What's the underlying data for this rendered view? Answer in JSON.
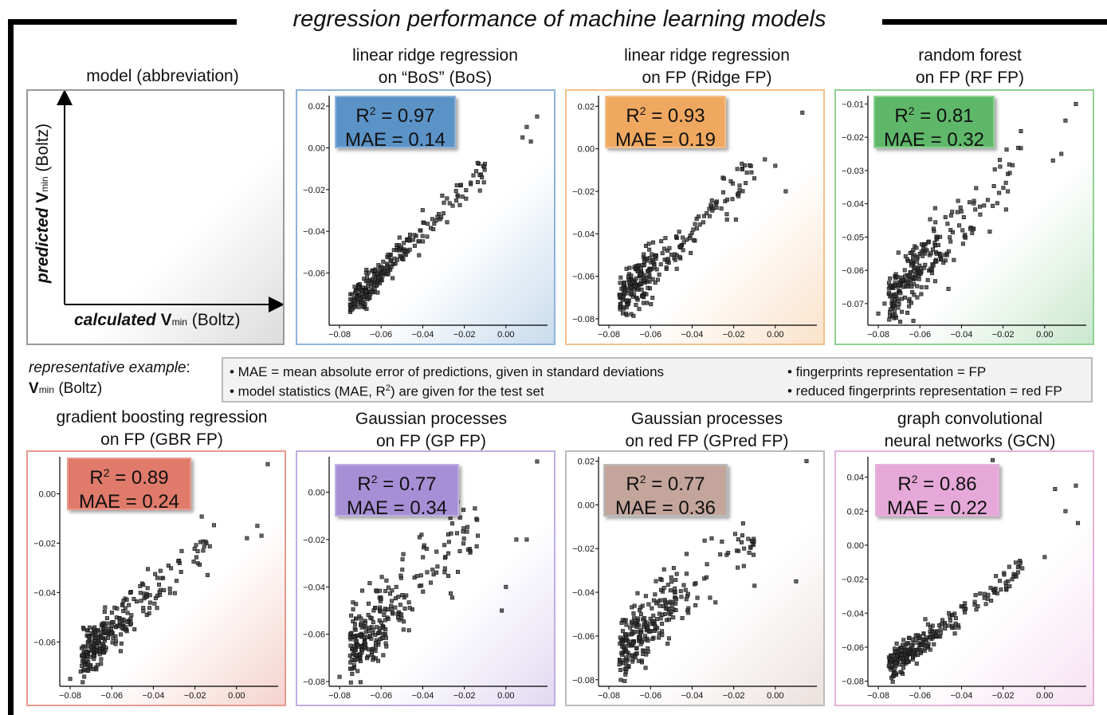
{
  "title": "regression performance of machine learning models",
  "schema": {
    "title": "model (abbreviation)",
    "y_label_em": "predicted",
    "y_label_var": "V",
    "y_label_sub": "min",
    "y_label_rest": "(Boltz)",
    "x_label_em": "calculated",
    "x_label_var": "V",
    "x_label_sub": "min",
    "x_label_rest": "(Boltz)"
  },
  "representative": {
    "line1": "representative example",
    "colon": ":",
    "var": "V",
    "sub": "min",
    "rest": "(Boltz)"
  },
  "notes": {
    "mae": "• MAE = mean absolute error of predictions, given in standard deviations",
    "stats_a": "• model statistics (MAE, R",
    "stats_sup": "2",
    "stats_b": ") are given for the test set",
    "fp": "• fingerprints representation = FP",
    "redfp": "• reduced fingerprints representation = red FP"
  },
  "chart_data": [
    {
      "type": "scatter",
      "title_line1": "linear ridge regression",
      "title_line2": "on “BoS” (BoS)",
      "r2_label": "R",
      "r2_sup": "2",
      "r2_value": " = 0.97",
      "mae_label": "MAE = 0.14",
      "accent": "#5b93c7",
      "border": "#8fb3d9",
      "xlim": [
        -0.085,
        0.02
      ],
      "ylim": [
        -0.085,
        0.025
      ],
      "xticks": [
        -0.08,
        -0.06,
        -0.04,
        -0.02,
        0.0
      ],
      "yticks": [
        -0.06,
        -0.04,
        -0.02,
        0.0,
        0.02
      ],
      "xtick_labels": [
        "−0.08",
        "−0.06",
        "−0.04",
        "−0.02",
        "0.00"
      ],
      "ytick_labels": [
        "−0.06",
        "−0.04",
        "−0.02",
        "0.00",
        "0.02"
      ],
      "slope": 1.0,
      "intercept": 0.0,
      "noise": 0.0035,
      "seed": 11,
      "outliers": [
        [
          0.01,
          0.01
        ],
        [
          0.015,
          0.015
        ],
        [
          0.008,
          0.005
        ],
        [
          0.012,
          0.003
        ]
      ]
    },
    {
      "type": "scatter",
      "title_line1": "linear ridge regression",
      "title_line2": "on FP (Ridge FP)",
      "r2_label": "R",
      "r2_sup": "2",
      "r2_value": " = 0.93",
      "mae_label": "MAE = 0.19",
      "accent": "#f0a860",
      "border": "#f3c08a",
      "xlim": [
        -0.085,
        0.02
      ],
      "ylim": [
        -0.083,
        0.025
      ],
      "xticks": [
        -0.08,
        -0.06,
        -0.04,
        -0.02,
        0.0
      ],
      "yticks": [
        -0.08,
        -0.06,
        -0.04,
        -0.02,
        0.0,
        0.02
      ],
      "xtick_labels": [
        "−0.08",
        "−0.06",
        "−0.04",
        "−0.02",
        "0.00"
      ],
      "ytick_labels": [
        "−0.08",
        "−0.06",
        "−0.04",
        "−0.02",
        "0.00",
        "0.02"
      ],
      "slope": 0.95,
      "intercept": 0.0,
      "noise": 0.0055,
      "seed": 23,
      "outliers": [
        [
          0.013,
          0.017
        ],
        [
          0.0,
          -0.008
        ],
        [
          -0.005,
          -0.005
        ],
        [
          0.005,
          -0.02
        ]
      ]
    },
    {
      "type": "scatter",
      "title_line1": "random forest",
      "title_line2": "on FP (RF FP)",
      "r2_label": "R",
      "r2_sup": "2",
      "r2_value": " = 0.81",
      "mae_label": "MAE = 0.32",
      "accent": "#5fb86a",
      "border": "#8fd193",
      "xlim": [
        -0.085,
        0.02
      ],
      "ylim": [
        -0.0765,
        -0.0075
      ],
      "xticks": [
        -0.08,
        -0.06,
        -0.04,
        -0.02,
        0.0
      ],
      "yticks": [
        -0.07,
        -0.06,
        -0.05,
        -0.04,
        -0.03,
        -0.02,
        -0.01
      ],
      "xtick_labels": [
        "−0.08",
        "−0.06",
        "−0.04",
        "−0.02",
        "0.00"
      ],
      "ytick_labels": [
        "−0.07",
        "−0.06",
        "−0.05",
        "−0.04",
        "−0.03",
        "−0.02",
        "−0.01"
      ],
      "slope": 0.62,
      "intercept": -0.022,
      "noise": 0.0048,
      "seed": 37,
      "outliers": [
        [
          0.015,
          -0.01
        ],
        [
          0.01,
          -0.015
        ],
        [
          0.008,
          -0.025
        ],
        [
          0.004,
          -0.027
        ],
        [
          -0.08,
          -0.073
        ],
        [
          -0.077,
          -0.07
        ]
      ]
    },
    {
      "type": "scatter",
      "title_line1": "gradient boosting regression",
      "title_line2": "on FP (GBR FP)",
      "r2_label": "R",
      "r2_sup": "2",
      "r2_value": " = 0.89",
      "mae_label": "MAE = 0.24",
      "accent": "#e07a6a",
      "border": "#e89a8e",
      "xlim": [
        -0.085,
        0.02
      ],
      "ylim": [
        -0.078,
        0.015
      ],
      "xticks": [
        -0.08,
        -0.06,
        -0.04,
        -0.02,
        0.0
      ],
      "yticks": [
        -0.06,
        -0.04,
        -0.02,
        0.0
      ],
      "xtick_labels": [
        "−0.08",
        "−0.06",
        "−0.04",
        "−0.02",
        "0.00"
      ],
      "ytick_labels": [
        "−0.06",
        "−0.04",
        "−0.02",
        "0.00"
      ],
      "slope": 0.85,
      "intercept": -0.005,
      "noise": 0.005,
      "seed": 41,
      "outliers": [
        [
          0.015,
          0.012
        ],
        [
          0.01,
          -0.013
        ],
        [
          0.005,
          -0.018
        ],
        [
          0.012,
          -0.017
        ],
        [
          -0.08,
          -0.075
        ]
      ]
    },
    {
      "type": "scatter",
      "title_line1": "Gaussian processes",
      "title_line2": "on FP (GP FP)",
      "r2_label": "R",
      "r2_sup": "2",
      "r2_value": " = 0.77",
      "mae_label": "MAE = 0.34",
      "accent": "#a78fd6",
      "border": "#bfaee0",
      "xlim": [
        -0.085,
        0.02
      ],
      "ylim": [
        -0.082,
        0.015
      ],
      "xticks": [
        -0.08,
        -0.06,
        -0.04,
        -0.02,
        0.0
      ],
      "yticks": [
        -0.08,
        -0.06,
        -0.04,
        -0.02,
        0.0
      ],
      "xtick_labels": [
        "−0.08",
        "−0.06",
        "−0.04",
        "−0.02",
        "0.00"
      ],
      "ytick_labels": [
        "−0.08",
        "−0.06",
        "−0.04",
        "−0.02",
        "0.00"
      ],
      "slope": 0.9,
      "intercept": 0.0,
      "noise": 0.0075,
      "seed": 53,
      "outliers": [
        [
          0.015,
          0.013
        ],
        [
          0.01,
          -0.02
        ],
        [
          0.005,
          -0.02
        ],
        [
          0.0,
          -0.04
        ],
        [
          -0.08,
          -0.078
        ],
        [
          -0.002,
          -0.05
        ]
      ]
    },
    {
      "type": "scatter",
      "title_line1": "Gaussian processes",
      "title_line2": "on red FP (GPred FP)",
      "r2_label": "R",
      "r2_sup": "2",
      "r2_value": " = 0.77",
      "mae_label": "MAE = 0.36",
      "accent": "#c4a59c",
      "border": "#bbb",
      "xlim": [
        -0.085,
        0.02
      ],
      "ylim": [
        -0.083,
        0.022
      ],
      "xticks": [
        -0.08,
        -0.06,
        -0.04,
        -0.02,
        0.0
      ],
      "yticks": [
        -0.08,
        -0.06,
        -0.04,
        -0.02,
        0.0,
        0.02
      ],
      "xtick_labels": [
        "−0.08",
        "−0.06",
        "−0.04",
        "−0.02",
        "0.00"
      ],
      "ytick_labels": [
        "−0.08",
        "−0.06",
        "−0.04",
        "−0.02",
        "0.00",
        "0.02"
      ],
      "slope": 0.82,
      "intercept": -0.006,
      "noise": 0.0075,
      "seed": 67,
      "outliers": [
        [
          0.015,
          0.02
        ],
        [
          0.01,
          -0.035
        ],
        [
          -0.01,
          -0.037
        ],
        [
          -0.015,
          -0.02
        ],
        [
          -0.075,
          -0.073
        ]
      ]
    },
    {
      "type": "scatter",
      "title_line1": "graph convolutional",
      "title_line2": "neural networks (GCN)",
      "r2_label": "R",
      "r2_sup": "2",
      "r2_value": " = 0.86",
      "mae_label": "MAE = 0.22",
      "accent": "#e6a8d8",
      "border": "#e3b3da",
      "xlim": [
        -0.085,
        0.02
      ],
      "ylim": [
        -0.083,
        0.052
      ],
      "xticks": [
        -0.08,
        -0.06,
        -0.04,
        -0.02,
        0.0
      ],
      "yticks": [
        -0.08,
        -0.06,
        -0.04,
        -0.02,
        0.0,
        0.02,
        0.04
      ],
      "xtick_labels": [
        "−0.08",
        "−0.06",
        "−0.04",
        "−0.02",
        "0.00"
      ],
      "ytick_labels": [
        "−0.08",
        "−0.06",
        "−0.04",
        "−0.02",
        "0.00",
        "0.02",
        "0.04"
      ],
      "slope": 0.9,
      "intercept": -0.004,
      "noise": 0.0042,
      "seed": 79,
      "outliers": [
        [
          0.015,
          0.035
        ],
        [
          0.016,
          0.013
        ],
        [
          0.01,
          0.02
        ],
        [
          -0.025,
          0.05
        ],
        [
          0.005,
          0.033
        ],
        [
          0.0,
          -0.007
        ]
      ]
    }
  ]
}
